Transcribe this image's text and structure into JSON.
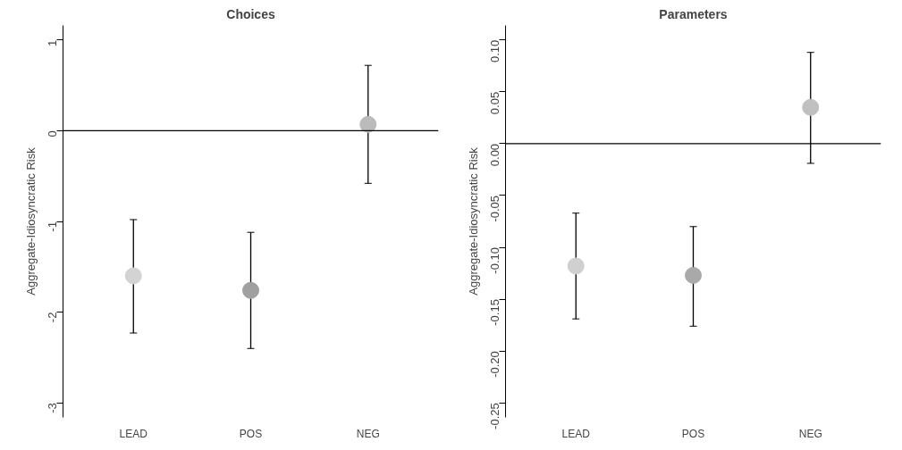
{
  "chart_data": [
    {
      "type": "scatter",
      "title": "Choices",
      "ylabel": "Aggregate-Idiosyncratic Risk",
      "categories": [
        "LEAD",
        "POS",
        "NEG"
      ],
      "values": [
        -1.6,
        -1.76,
        0.07
      ],
      "colors": [
        "#d3d3d3",
        "#a0a0a0",
        "#bbbbbb"
      ],
      "errors": [
        [
          -2.23,
          -0.98
        ],
        [
          -2.4,
          -1.12
        ],
        [
          -0.58,
          0.72
        ]
      ],
      "ylim": [
        -3.16,
        1.16
      ],
      "yticks": [
        -3,
        -2,
        -1,
        0,
        1
      ],
      "marker": "circle",
      "grid": false,
      "legend": false,
      "ref_lines": [
        {
          "axis": "y",
          "value": 0,
          "color": "#000000"
        }
      ]
    },
    {
      "type": "scatter",
      "title": "Parameters",
      "ylabel": "Aggregate-Idiosyncratic Risk",
      "categories": [
        "LEAD",
        "POS",
        "NEG"
      ],
      "values": [
        -0.118,
        -0.127,
        0.035
      ],
      "colors": [
        "#d0d0d0",
        "#a9a9a9",
        "#c0c0c0"
      ],
      "errors": [
        [
          -0.169,
          -0.067
        ],
        [
          -0.176,
          -0.08
        ],
        [
          -0.019,
          0.088
        ]
      ],
      "ylim": [
        -0.264,
        0.114
      ],
      "yticks": [
        {
          "value": -0.25,
          "label": "-0.25"
        },
        {
          "value": -0.2,
          "label": "-0.20"
        },
        {
          "value": -0.15,
          "label": "-0.15"
        },
        {
          "value": -0.1,
          "label": "-0.10"
        },
        {
          "value": -0.05,
          "label": "-0.05"
        },
        {
          "value": 0,
          "label": "0.00"
        },
        {
          "value": 0.05,
          "label": "0.05"
        },
        {
          "value": 0.1,
          "label": "0.10"
        }
      ],
      "marker": "circle",
      "grid": false,
      "legend": false,
      "ref_lines": [
        {
          "axis": "y",
          "value": 0,
          "color": "#000000"
        }
      ]
    }
  ]
}
